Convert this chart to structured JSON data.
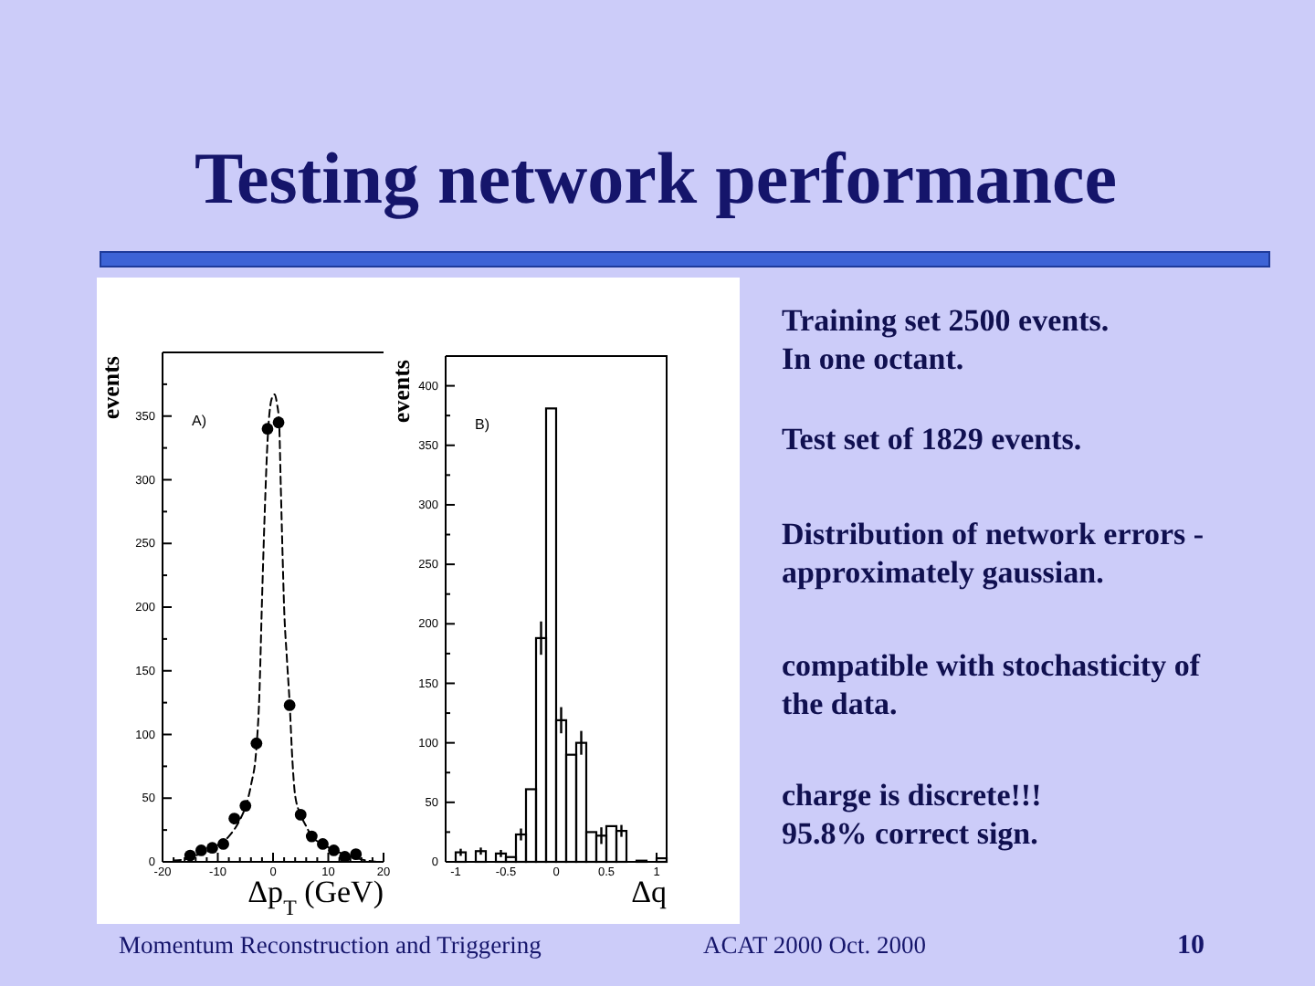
{
  "chart_data": [
    {
      "type": "other",
      "title": "Testing network performance",
      "annotations": [
        "Training set 2500 events.",
        "In one octant.",
        "Test set of 1829 events.",
        "Distribution of network errors -",
        "approximately gaussian.",
        "compatible with stochasticity of",
        "the data.",
        "charge is discrete!!!",
        "95.8% correct sign.",
        "Momentum Reconstruction and Triggering",
        "ACAT 2000  Oct. 2000",
        "10"
      ]
    },
    {
      "type": "scatter",
      "xlabel": "Δp$_{T}$ (GeV)",
      "ylabel": "events",
      "annotations": [
        "A)"
      ],
      "xlim": [
        -20,
        20
      ],
      "xticks": [
        -20,
        {
          "value": -18,
          "label": null
        },
        {
          "value": -16,
          "label": null
        },
        {
          "value": -14,
          "label": null
        },
        {
          "value": -12,
          "label": null
        },
        -10,
        {
          "value": -8,
          "label": null
        },
        {
          "value": -6,
          "label": null
        },
        {
          "value": -4,
          "label": null
        },
        {
          "value": -2,
          "label": null
        },
        0,
        {
          "value": 2,
          "label": null
        },
        {
          "value": 4,
          "label": null
        },
        {
          "value": 6,
          "label": null
        },
        {
          "value": 8,
          "label": null
        },
        10,
        {
          "value": 12,
          "label": null
        },
        {
          "value": 14,
          "label": null
        },
        {
          "value": 16,
          "label": null
        },
        {
          "value": 18,
          "label": null
        },
        20
      ],
      "ylim": [
        0,
        400
      ],
      "yticks": [
        0,
        {
          "value": 25,
          "label": null
        },
        50,
        {
          "value": 75,
          "label": null
        },
        100,
        {
          "value": 125,
          "label": null
        },
        150,
        {
          "value": 175,
          "label": null
        },
        200,
        {
          "value": 225,
          "label": null
        },
        250,
        {
          "value": 275,
          "label": null
        },
        300,
        {
          "value": 325,
          "label": null
        },
        350,
        {
          "value": 375,
          "label": null
        }
      ],
      "series": [
        {
          "type": "scatter",
          "color": "#000000",
          "marker": "circle",
          "x": [
            -15,
            -13,
            -11,
            -9,
            -7,
            -5,
            -3,
            -1,
            1,
            3,
            5,
            7,
            9,
            11,
            13,
            15
          ],
          "values": [
            5,
            9,
            11,
            14,
            34,
            44,
            93,
            340,
            345,
            123,
            37,
            20,
            14,
            9,
            4,
            6
          ]
        },
        {
          "type": "line",
          "color": "#000000",
          "line_style": "dashed",
          "x": [
            -18,
            -16,
            -14,
            -12,
            -10,
            -8,
            -6,
            -5,
            -4,
            -3,
            -2.5,
            -2,
            -1.5,
            -1,
            -0.5,
            0,
            0.3,
            0.7,
            1.1,
            1.4,
            1.7,
            2,
            2.5,
            3,
            3.5,
            4,
            5,
            6,
            7,
            9,
            11,
            13,
            15,
            17,
            19
          ],
          "values": [
            1,
            2,
            5,
            8,
            13,
            20,
            33,
            43,
            60,
            90,
            128,
            205,
            275,
            330,
            358,
            366,
            367,
            360,
            345,
            295,
            245,
            200,
            160,
            125,
            80,
            52,
            37,
            28,
            20,
            14,
            9,
            6,
            3,
            1,
            0
          ]
        }
      ]
    },
    {
      "type": "histogram",
      "xlabel": "Δq",
      "ylabel": "events",
      "annotations": [
        "B)"
      ],
      "color": "#000000",
      "bins": [
        -1,
        -0.9,
        -0.8,
        -0.7,
        -0.6,
        -0.5,
        -0.4,
        -0.3,
        -0.2,
        -0.1,
        0,
        0.1,
        0.2,
        0.3,
        0.4,
        0.5,
        0.6,
        0.7,
        0.8,
        0.9,
        1,
        1.1
      ],
      "values": [
        8,
        null,
        9,
        null,
        7,
        4,
        23,
        61,
        188,
        381,
        119,
        90,
        100,
        25,
        22,
        30,
        26,
        null,
        1,
        null,
        3
      ],
      "errors": [
        3,
        null,
        3,
        null,
        3,
        null,
        5,
        null,
        14,
        null,
        11,
        null,
        10,
        null,
        7,
        null,
        5,
        null,
        null,
        null,
        null
      ],
      "xlim": [
        -1.1,
        1.1
      ],
      "xticks": [
        -1,
        -0.5,
        0,
        0.5,
        1
      ],
      "ylim": [
        0,
        425
      ],
      "yticks": [
        0,
        {
          "value": 25,
          "label": null
        },
        50,
        {
          "value": 75,
          "label": null
        },
        100,
        {
          "value": 125,
          "label": null
        },
        150,
        {
          "value": 175,
          "label": null
        },
        200,
        {
          "value": 225,
          "label": null
        },
        250,
        {
          "value": 275,
          "label": null
        },
        300,
        {
          "value": 325,
          "label": null
        },
        350,
        {
          "value": 375,
          "label": null
        },
        400
      ]
    }
  ]
}
